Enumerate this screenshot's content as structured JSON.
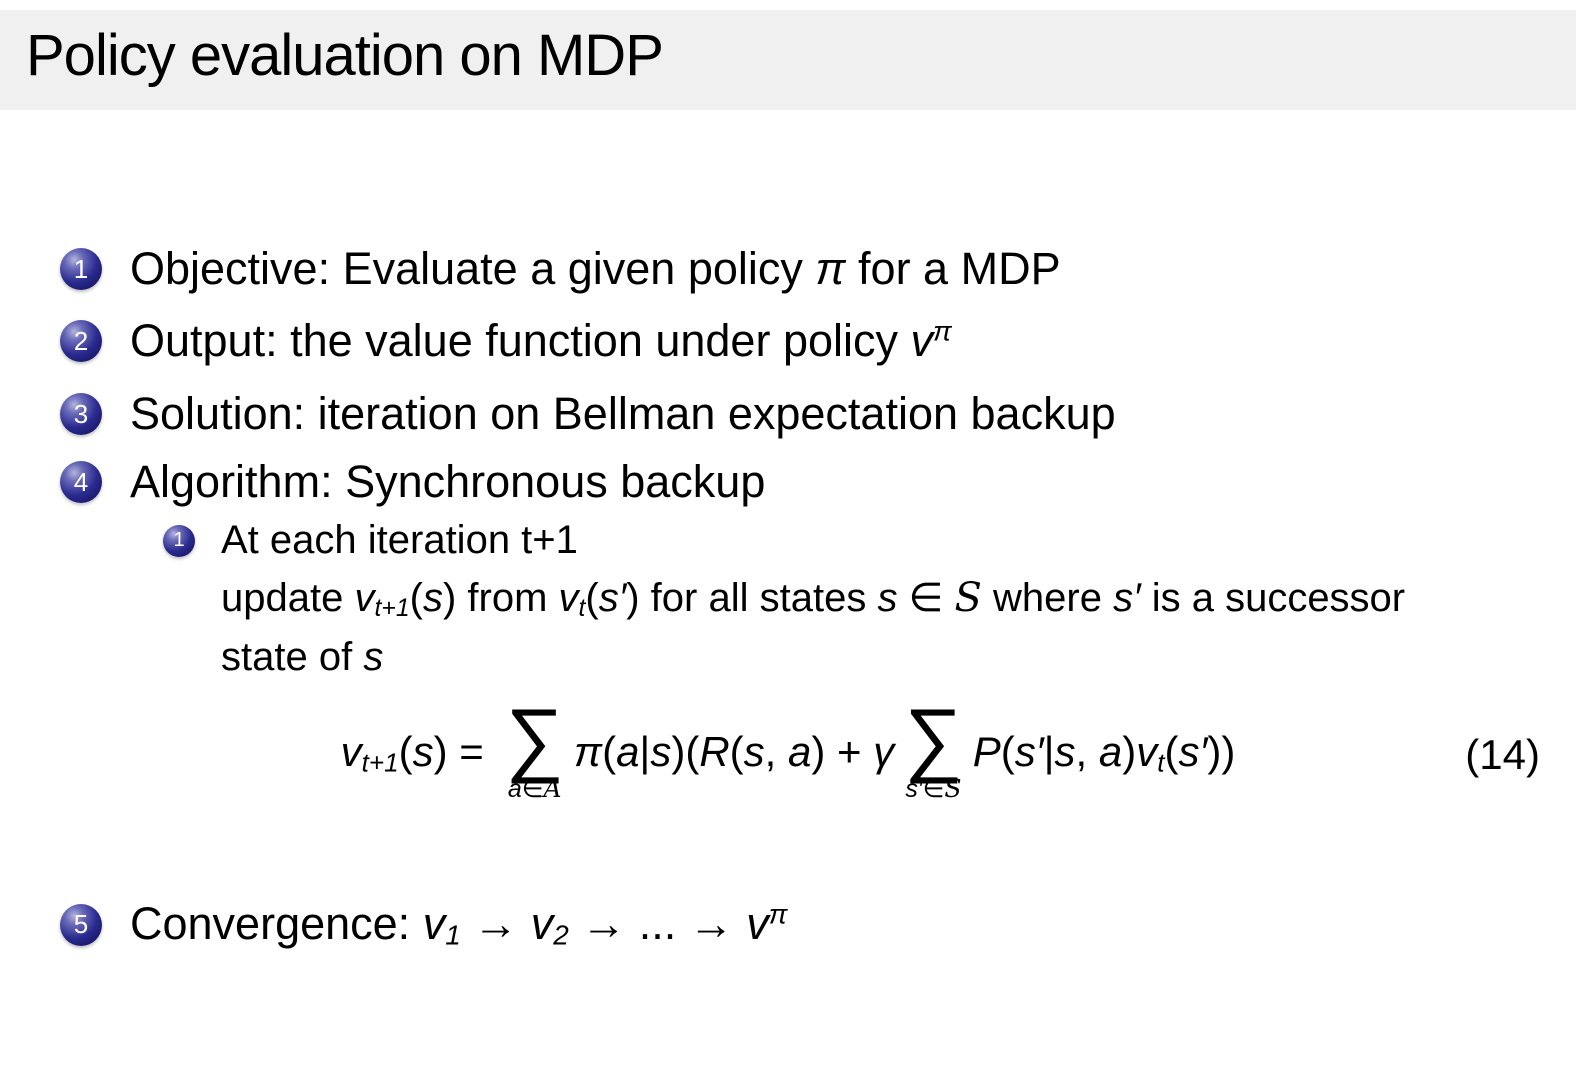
{
  "colors": {
    "background": "#ffffff",
    "title_bar_bg": "#f0f0f0",
    "text": "#000000",
    "badge_blue_dark": "#0d0d52",
    "badge_blue": "#2a2a8f",
    "badge_highlight": "#b4b4de",
    "badge_number_color": "#ffffff"
  },
  "header": {
    "title": "Policy evaluation on MDP"
  },
  "list": {
    "items": [
      {
        "num": "1",
        "segments": [
          {
            "text": "Objective: Evaluate a given policy ",
            "style": "rm"
          },
          {
            "text": "π",
            "style": "i"
          },
          {
            "text": " for a MDP",
            "style": "rm"
          }
        ]
      },
      {
        "num": "2",
        "segments": [
          {
            "text": "Output: the value function under policy ",
            "style": "rm"
          },
          {
            "text": "v",
            "style": "i"
          },
          {
            "text": "π",
            "style": "sup"
          }
        ]
      },
      {
        "num": "3",
        "segments": [
          {
            "text": "Solution: iteration on Bellman expectation backup",
            "style": "rm"
          }
        ]
      },
      {
        "num": "4",
        "segments": [
          {
            "text": "Algorithm: Synchronous backup",
            "style": "rm"
          }
        ]
      },
      {
        "num": "5",
        "segments": [
          {
            "text": "Convergence: ",
            "style": "rm"
          },
          {
            "text": "v",
            "style": "i"
          },
          {
            "text": "1",
            "style": "sub"
          },
          {
            "text": " → ",
            "style": "rm"
          },
          {
            "text": "v",
            "style": "i"
          },
          {
            "text": "2",
            "style": "sub"
          },
          {
            "text": " → ... → ",
            "style": "rm"
          },
          {
            "text": "v",
            "style": "i"
          },
          {
            "text": "π",
            "style": "sup"
          }
        ]
      }
    ]
  },
  "sublist": {
    "num": "1",
    "line1": [
      {
        "text": "At each iteration t+1",
        "style": "rm"
      }
    ],
    "line2": [
      {
        "text": "update ",
        "style": "rm"
      },
      {
        "text": "v",
        "style": "i"
      },
      {
        "text": "t+1",
        "style": "sub"
      },
      {
        "text": "(",
        "style": "rm"
      },
      {
        "text": "s",
        "style": "i"
      },
      {
        "text": ") from ",
        "style": "rm"
      },
      {
        "text": "v",
        "style": "i"
      },
      {
        "text": "t",
        "style": "sub"
      },
      {
        "text": "(",
        "style": "rm"
      },
      {
        "text": "s′",
        "style": "i"
      },
      {
        "text": ") for all states ",
        "style": "rm"
      },
      {
        "text": "s",
        "style": "i"
      },
      {
        "text": " ∈ ",
        "style": "rm"
      },
      {
        "text": "S",
        "style": "cal"
      },
      {
        "text": " where ",
        "style": "rm"
      },
      {
        "text": "s′",
        "style": "i"
      },
      {
        "text": " is a successor",
        "style": "rm"
      }
    ],
    "line3": [
      {
        "text": "state of ",
        "style": "rm"
      },
      {
        "text": "s",
        "style": "i"
      }
    ]
  },
  "equation": {
    "number": "(14)",
    "segments": [
      {
        "text": "v",
        "style": "i"
      },
      {
        "text": "t+1",
        "style": "sub"
      },
      {
        "text": "(",
        "style": "rm"
      },
      {
        "text": "s",
        "style": "i"
      },
      {
        "text": ") = ",
        "style": "rm"
      },
      {
        "style": "sum",
        "sym": "∑",
        "under": [
          {
            "text": "a",
            "style": "i"
          },
          {
            "text": "∈",
            "style": "rm"
          },
          {
            "text": "A",
            "style": "cal"
          }
        ]
      },
      {
        "text": "π",
        "style": "i"
      },
      {
        "text": "(",
        "style": "rm"
      },
      {
        "text": "a",
        "style": "i"
      },
      {
        "text": "|",
        "style": "rm"
      },
      {
        "text": "s",
        "style": "i"
      },
      {
        "text": ")(",
        "style": "rm"
      },
      {
        "text": "R",
        "style": "i"
      },
      {
        "text": "(",
        "style": "rm"
      },
      {
        "text": "s",
        "style": "i"
      },
      {
        "text": ", ",
        "style": "rm"
      },
      {
        "text": "a",
        "style": "i"
      },
      {
        "text": ") + ",
        "style": "rm"
      },
      {
        "text": "γ",
        "style": "i"
      },
      {
        "style": "sum",
        "sym": "∑",
        "under": [
          {
            "text": "s′",
            "style": "i"
          },
          {
            "text": "∈",
            "style": "rm"
          },
          {
            "text": "S",
            "style": "cal"
          }
        ]
      },
      {
        "text": "P",
        "style": "i"
      },
      {
        "text": "(",
        "style": "rm"
      },
      {
        "text": "s′",
        "style": "i"
      },
      {
        "text": "|",
        "style": "rm"
      },
      {
        "text": "s",
        "style": "i"
      },
      {
        "text": ", ",
        "style": "rm"
      },
      {
        "text": "a",
        "style": "i"
      },
      {
        "text": ")",
        "style": "rm"
      },
      {
        "text": "v",
        "style": "i"
      },
      {
        "text": "t",
        "style": "sub"
      },
      {
        "text": "(",
        "style": "rm"
      },
      {
        "text": "s′",
        "style": "i"
      },
      {
        "text": "))",
        "style": "rm"
      }
    ]
  }
}
